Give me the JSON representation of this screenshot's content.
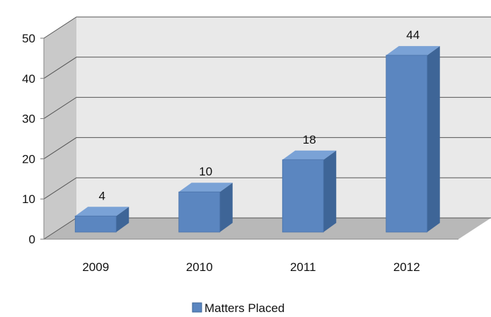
{
  "chart_data": {
    "type": "bar",
    "categories": [
      "2009",
      "2010",
      "2011",
      "2012"
    ],
    "series": [
      {
        "name": "Matters Placed",
        "values": [
          4,
          10,
          18,
          44
        ]
      }
    ],
    "ylim": [
      0,
      50
    ],
    "yticks": [
      0,
      10,
      20,
      30,
      40,
      50
    ],
    "grid": true,
    "legend": "bottom",
    "style": "3d",
    "colors": {
      "bar_front": "#5b86c0",
      "bar_side": "#3e6597",
      "bar_top": "#7aa2d6",
      "wall_back": "#e9e9e9",
      "wall_side": "#c9c9c9",
      "floor": "#b8b8b8",
      "gridline": "#555555"
    }
  }
}
